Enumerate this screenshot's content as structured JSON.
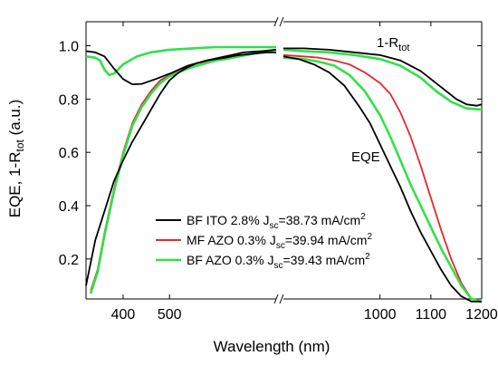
{
  "chart_data": {
    "type": "line",
    "title": "",
    "xlabel": "Wavelength (nm)",
    "ylabel": {
      "main": "EQE, 1-R",
      "sub": "tot",
      "unit": " (a.u.)"
    },
    "x_axis_break": true,
    "xlim_left": [
      320,
      730
    ],
    "xlim_right": [
      810,
      1200
    ],
    "ylim": [
      0.05,
      1.09
    ],
    "x_ticks_left": [
      400,
      500
    ],
    "x_ticks_right": [
      1000,
      1100,
      1200
    ],
    "y_ticks": [
      0.2,
      0.4,
      0.6,
      0.8,
      1.0
    ],
    "grid": false,
    "legend_position": "lower-center",
    "annotations": [
      {
        "main": "1-R",
        "sub": "tot",
        "x": 1040,
        "y": 1.0
      },
      {
        "main": "EQE",
        "sub": "",
        "x": 1045,
        "y": 0.72
      }
    ],
    "series": [
      {
        "legend": {
          "prefix": "BF ITO 2.8% J",
          "sub": "sc",
          "mid": "=38.73 mA/cm",
          "sup": "2"
        },
        "color": "#000000",
        "eqe": [
          [
            320,
            0.1
          ],
          [
            340,
            0.27
          ],
          [
            360,
            0.38
          ],
          [
            380,
            0.49
          ],
          [
            400,
            0.57
          ],
          [
            420,
            0.64
          ],
          [
            440,
            0.7
          ],
          [
            460,
            0.76
          ],
          [
            480,
            0.82
          ],
          [
            500,
            0.87
          ],
          [
            520,
            0.9
          ],
          [
            540,
            0.92
          ],
          [
            560,
            0.935
          ],
          [
            580,
            0.945
          ],
          [
            600,
            0.95
          ],
          [
            620,
            0.955
          ],
          [
            650,
            0.965
          ],
          [
            680,
            0.97
          ],
          [
            710,
            0.975
          ],
          [
            730,
            0.975
          ],
          [
            810,
            0.96
          ],
          [
            840,
            0.95
          ],
          [
            870,
            0.93
          ],
          [
            900,
            0.9
          ],
          [
            930,
            0.85
          ],
          [
            960,
            0.77
          ],
          [
            980,
            0.71
          ],
          [
            1000,
            0.63
          ],
          [
            1020,
            0.55
          ],
          [
            1040,
            0.47
          ],
          [
            1060,
            0.38
          ],
          [
            1080,
            0.3
          ],
          [
            1100,
            0.23
          ],
          [
            1120,
            0.16
          ],
          [
            1140,
            0.1
          ],
          [
            1160,
            0.06
          ],
          [
            1180,
            0.04
          ],
          [
            1200,
            0.04
          ]
        ],
        "one_minus_r": [
          [
            320,
            0.98
          ],
          [
            340,
            0.975
          ],
          [
            360,
            0.96
          ],
          [
            380,
            0.915
          ],
          [
            400,
            0.875
          ],
          [
            420,
            0.855
          ],
          [
            440,
            0.857
          ],
          [
            470,
            0.875
          ],
          [
            500,
            0.895
          ],
          [
            540,
            0.925
          ],
          [
            580,
            0.945
          ],
          [
            620,
            0.96
          ],
          [
            660,
            0.975
          ],
          [
            700,
            0.98
          ],
          [
            730,
            0.985
          ],
          [
            810,
            0.99
          ],
          [
            850,
            0.99
          ],
          [
            900,
            0.985
          ],
          [
            950,
            0.975
          ],
          [
            1000,
            0.965
          ],
          [
            1040,
            0.945
          ],
          [
            1080,
            0.905
          ],
          [
            1110,
            0.86
          ],
          [
            1130,
            0.83
          ],
          [
            1150,
            0.8
          ],
          [
            1170,
            0.78
          ],
          [
            1190,
            0.775
          ],
          [
            1200,
            0.78
          ]
        ]
      },
      {
        "legend": {
          "prefix": "MF AZO 0.3% J",
          "sub": "sc",
          "mid": "=39.94 mA/cm",
          "sup": "2"
        },
        "color": "#e8262d",
        "eqe": [
          [
            330,
            0.08
          ],
          [
            345,
            0.16
          ],
          [
            360,
            0.3
          ],
          [
            380,
            0.46
          ],
          [
            400,
            0.6
          ],
          [
            420,
            0.71
          ],
          [
            440,
            0.78
          ],
          [
            460,
            0.83
          ],
          [
            480,
            0.87
          ],
          [
            500,
            0.89
          ],
          [
            520,
            0.91
          ],
          [
            540,
            0.925
          ],
          [
            560,
            0.935
          ],
          [
            580,
            0.94
          ],
          [
            600,
            0.945
          ],
          [
            620,
            0.95
          ],
          [
            650,
            0.96
          ],
          [
            680,
            0.97
          ],
          [
            710,
            0.98
          ],
          [
            730,
            0.985
          ],
          [
            810,
            0.965
          ],
          [
            850,
            0.96
          ],
          [
            880,
            0.955
          ],
          [
            910,
            0.945
          ],
          [
            940,
            0.93
          ],
          [
            970,
            0.9
          ],
          [
            1000,
            0.86
          ],
          [
            1020,
            0.82
          ],
          [
            1040,
            0.75
          ],
          [
            1060,
            0.66
          ],
          [
            1080,
            0.55
          ],
          [
            1100,
            0.43
          ],
          [
            1120,
            0.31
          ],
          [
            1140,
            0.2
          ],
          [
            1160,
            0.11
          ],
          [
            1180,
            0.05
          ],
          [
            1200,
            0.04
          ]
        ],
        "one_minus_r": []
      },
      {
        "legend": {
          "prefix": "BF AZO 0.3% J",
          "sub": "sc",
          "mid": "=39.43 mA/cm",
          "sup": "2"
        },
        "color": "#33e04a",
        "eqe": [
          [
            330,
            0.07
          ],
          [
            345,
            0.15
          ],
          [
            360,
            0.29
          ],
          [
            380,
            0.45
          ],
          [
            400,
            0.59
          ],
          [
            420,
            0.7
          ],
          [
            440,
            0.77
          ],
          [
            460,
            0.82
          ],
          [
            480,
            0.86
          ],
          [
            500,
            0.885
          ],
          [
            520,
            0.9
          ],
          [
            540,
            0.915
          ],
          [
            560,
            0.925
          ],
          [
            580,
            0.935
          ],
          [
            600,
            0.945
          ],
          [
            620,
            0.95
          ],
          [
            650,
            0.96
          ],
          [
            680,
            0.97
          ],
          [
            710,
            0.98
          ],
          [
            730,
            0.985
          ],
          [
            810,
            0.955
          ],
          [
            850,
            0.95
          ],
          [
            880,
            0.94
          ],
          [
            910,
            0.925
          ],
          [
            940,
            0.89
          ],
          [
            970,
            0.83
          ],
          [
            1000,
            0.74
          ],
          [
            1020,
            0.66
          ],
          [
            1040,
            0.57
          ],
          [
            1060,
            0.48
          ],
          [
            1080,
            0.4
          ],
          [
            1100,
            0.32
          ],
          [
            1120,
            0.24
          ],
          [
            1140,
            0.17
          ],
          [
            1160,
            0.1
          ],
          [
            1180,
            0.05
          ],
          [
            1200,
            0.04
          ]
        ],
        "one_minus_r": [
          [
            320,
            0.96
          ],
          [
            340,
            0.955
          ],
          [
            350,
            0.945
          ],
          [
            360,
            0.91
          ],
          [
            370,
            0.89
          ],
          [
            380,
            0.895
          ],
          [
            400,
            0.93
          ],
          [
            430,
            0.96
          ],
          [
            460,
            0.975
          ],
          [
            500,
            0.985
          ],
          [
            550,
            0.99
          ],
          [
            600,
            0.995
          ],
          [
            650,
            0.995
          ],
          [
            700,
            0.995
          ],
          [
            730,
            0.995
          ],
          [
            810,
            0.985
          ],
          [
            850,
            0.98
          ],
          [
            900,
            0.975
          ],
          [
            950,
            0.965
          ],
          [
            1000,
            0.95
          ],
          [
            1040,
            0.925
          ],
          [
            1080,
            0.88
          ],
          [
            1110,
            0.83
          ],
          [
            1140,
            0.79
          ],
          [
            1170,
            0.765
          ],
          [
            1200,
            0.76
          ]
        ]
      }
    ]
  }
}
